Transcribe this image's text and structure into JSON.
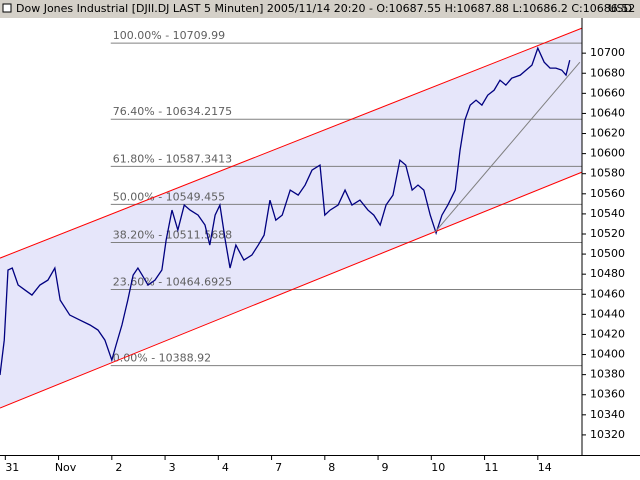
{
  "chart_data": {
    "type": "line",
    "title": "Dow Jones Industrial [DJII.DJ LAST 5 Minuten] 2005/11/14 20:20 - O:10687.55 H:10687.88 L:10686.2 C:10686.52",
    "y_axis_label": "USD",
    "xlim": [
      0,
      10.93
    ],
    "xticks": [
      {
        "value": 0.1,
        "label": "31"
      },
      {
        "value": 1.1,
        "label": "Nov"
      },
      {
        "value": 2.1,
        "label": "2"
      },
      {
        "value": 3.1,
        "label": "3"
      },
      {
        "value": 4.1,
        "label": "4"
      },
      {
        "value": 5.1,
        "label": "7"
      },
      {
        "value": 6.1,
        "label": "8"
      },
      {
        "value": 7.1,
        "label": "9"
      },
      {
        "value": 8.1,
        "label": "10"
      },
      {
        "value": 9.1,
        "label": "11"
      },
      {
        "value": 10.1,
        "label": "14"
      }
    ],
    "ylim": [
      10300,
      10735
    ],
    "yticks": [
      10320,
      10340,
      10360,
      10380,
      10400,
      10420,
      10440,
      10460,
      10480,
      10500,
      10520,
      10540,
      10560,
      10580,
      10600,
      10620,
      10640,
      10660,
      10680,
      10700
    ],
    "series": [
      {
        "color": "#000080",
        "x": [
          0,
          0.08,
          0.15,
          0.23,
          0.34,
          0.47,
          0.6,
          0.75,
          0.9,
          1.03,
          1.13,
          1.31,
          1.5,
          1.69,
          1.84,
          1.97,
          2.1,
          2.18,
          2.29,
          2.4,
          2.5,
          2.59,
          2.67,
          2.78,
          2.91,
          3.04,
          3.12,
          3.23,
          3.34,
          3.46,
          3.57,
          3.72,
          3.85,
          3.94,
          4.04,
          4.13,
          4.23,
          4.32,
          4.43,
          4.58,
          4.73,
          4.85,
          4.96,
          5.07,
          5.18,
          5.3,
          5.45,
          5.6,
          5.73,
          5.86,
          6.01,
          6.1,
          6.2,
          6.35,
          6.48,
          6.61,
          6.76,
          6.91,
          7.02,
          7.14,
          7.25,
          7.38,
          7.51,
          7.62,
          7.74,
          7.85,
          7.96,
          8.08,
          8.19,
          8.3,
          8.41,
          8.55,
          8.64,
          8.73,
          8.83,
          8.94,
          9.05,
          9.16,
          9.28,
          9.39,
          9.5,
          9.61,
          9.77,
          9.88,
          9.99,
          10.1,
          10.22,
          10.33,
          10.44,
          10.55,
          10.63,
          10.7
        ],
        "values": [
          10379.6,
          10414.4,
          10484.1,
          10486.1,
          10469.2,
          10464.2,
          10459.2,
          10469.2,
          10474.1,
          10486.1,
          10454.2,
          10439.3,
          10434.3,
          10429.4,
          10424.4,
          10414.4,
          10394.5,
          10409.5,
          10429.4,
          10454.2,
          10479.1,
          10486.1,
          10479.1,
          10469.2,
          10474.1,
          10484.1,
          10513.9,
          10543.8,
          10523.9,
          10548.8,
          10543.8,
          10538.8,
          10528.9,
          10509.0,
          10538.8,
          10548.8,
          10513.9,
          10486.1,
          10509.0,
          10494.0,
          10499.0,
          10509.0,
          10518.9,
          10553.7,
          10533.8,
          10538.8,
          10563.7,
          10558.7,
          10568.7,
          10583.6,
          10588.6,
          10538.8,
          10543.8,
          10548.8,
          10563.7,
          10548.8,
          10553.7,
          10543.8,
          10538.8,
          10528.9,
          10548.8,
          10558.7,
          10593.5,
          10588.6,
          10563.7,
          10568.7,
          10563.7,
          10538.8,
          10520.9,
          10538.8,
          10548.8,
          10563.7,
          10603.5,
          10633.3,
          10648.3,
          10653.2,
          10648.3,
          10658.2,
          10663.2,
          10673.1,
          10668.2,
          10675.1,
          10678.1,
          10683.1,
          10688.1,
          10705.0,
          10691.0,
          10685.1,
          10685.1,
          10683.1,
          10678.1,
          10693.0
        ]
      }
    ],
    "channel_fill": "#e6e6fa",
    "trendlines": [
      {
        "color": "#ff0000",
        "x": [
          0,
          10.93
        ],
        "y": [
          10496.0,
          10724.9
        ]
      },
      {
        "color": "#ff0000",
        "x": [
          0,
          10.93
        ],
        "y": [
          10346.8,
          10581.6
        ]
      },
      {
        "color": "#808080",
        "x": [
          8.17,
          10.89
        ],
        "y": [
          10521.9,
          10691.0
        ]
      }
    ],
    "fib_start": 2.08,
    "fib_levels": [
      {
        "value": 10709.99,
        "label": "100.00% - 10709.99"
      },
      {
        "value": 10634.2175,
        "label": "76.40% - 10634.2175"
      },
      {
        "value": 10587.3413,
        "label": "61.80% - 10587.3413"
      },
      {
        "value": 10549.455,
        "label": "50.00% - 10549.455"
      },
      {
        "value": 10511.5688,
        "label": "38.20% - 10511.5688"
      },
      {
        "value": 10464.6925,
        "label": "23.60% - 10464.6925"
      },
      {
        "value": 10388.92,
        "label": "0.00% - 10388.92"
      }
    ]
  }
}
